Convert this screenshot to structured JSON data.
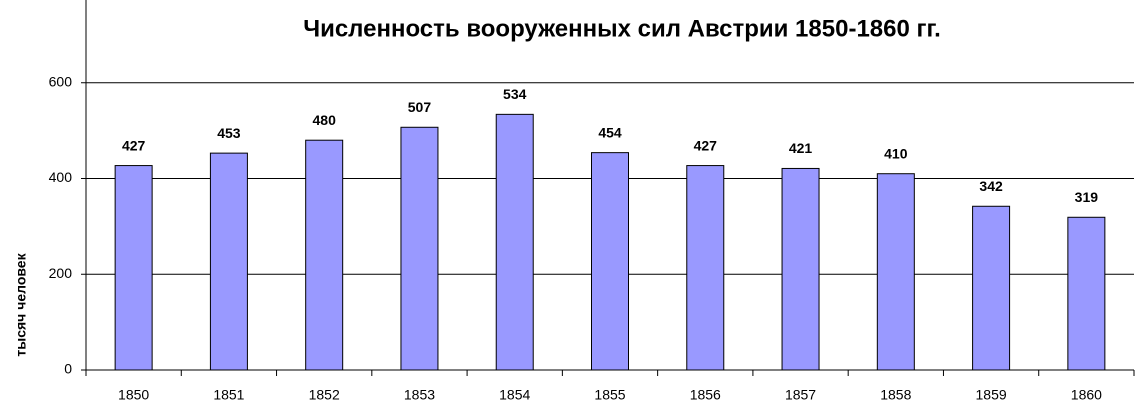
{
  "chart_data": {
    "type": "bar",
    "title": "Численность вооруженных сил Австрии 1850-1860 гг.",
    "y_label": "тысяч человек",
    "categories": [
      "1850",
      "1851",
      "1852",
      "1853",
      "1854",
      "1855",
      "1856",
      "1857",
      "1858",
      "1859",
      "1860"
    ],
    "values": [
      427,
      453,
      480,
      507,
      534,
      454,
      427,
      421,
      410,
      342,
      319
    ],
    "color": "#9999ff",
    "ylim": [
      0,
      800
    ],
    "yticks": [
      0,
      200,
      400,
      600
    ],
    "grid": true
  }
}
